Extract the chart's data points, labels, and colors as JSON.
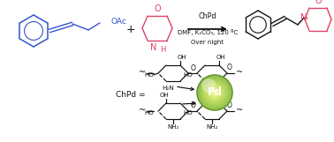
{
  "bg_color": "#ffffff",
  "blue": "#3355cc",
  "red": "#dd4466",
  "green_light": "#8ec04a",
  "green_dark": "#6a9930",
  "black": "#111111",
  "reagents_line1": "ChPd",
  "reagents_line2": "DMF, K₂CO₃, 120 ºC",
  "reagents_line3": "Over night",
  "pd_label": "Pd",
  "chpd_eq": "ChPd =",
  "fig_w": 3.78,
  "fig_h": 1.61,
  "dpi": 100
}
